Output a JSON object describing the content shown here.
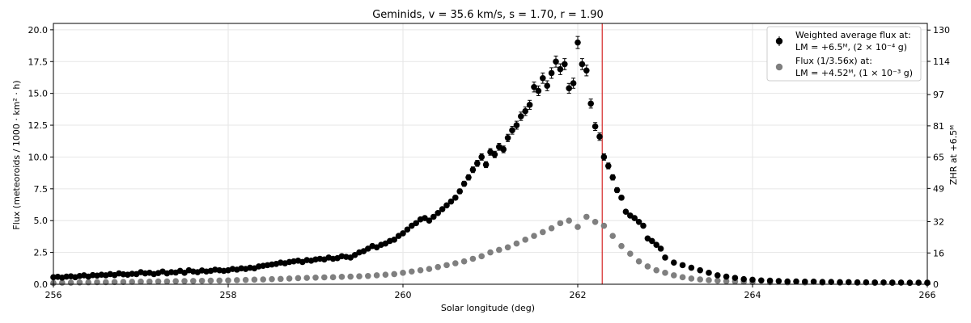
{
  "chart_data": {
    "type": "scatter",
    "title": "Geminids, v = 35.6 km/s, s = 1.70, r = 1.90",
    "xlabel": "Solar longitude (deg)",
    "ylabel": "Flux (meteoroids / 1000 · km² · h)",
    "y2label": "ZHR at +6.5ᴹ",
    "xlim": [
      256,
      266
    ],
    "ylim": [
      0,
      20.5
    ],
    "xticks": [
      256,
      258,
      260,
      262,
      264,
      266
    ],
    "xtick_labels": [
      "256",
      "258",
      "260",
      "262",
      "264",
      "266"
    ],
    "yticks": [
      0,
      2.5,
      5,
      7.5,
      10,
      12.5,
      15,
      17.5,
      20
    ],
    "ytick_labels": [
      "0.0",
      "2.5",
      "5.0",
      "7.5",
      "10.0",
      "12.5",
      "15.0",
      "17.5",
      "20.0"
    ],
    "y2ticks": [
      0,
      16,
      32,
      49,
      65,
      81,
      97,
      114,
      130
    ],
    "y2tick_labels": [
      "0",
      "16",
      "32",
      "49",
      "65",
      "81",
      "97",
      "114",
      "130"
    ],
    "y2lim": [
      0,
      133.4
    ],
    "grid": true,
    "legend_position": "top-right",
    "vline": {
      "x": 262.28,
      "color": "#d62728"
    },
    "series": [
      {
        "name_line1": "Weighted average flux at:",
        "name_line2": "LM = +6.5ᴹ, (2 × 10⁻⁴ g)",
        "color": "#000000",
        "error_bars": true,
        "x": [
          256.0,
          256.05,
          256.1,
          256.15,
          256.2,
          256.25,
          256.3,
          256.35,
          256.4,
          256.45,
          256.5,
          256.55,
          256.6,
          256.65,
          256.7,
          256.75,
          256.8,
          256.85,
          256.9,
          256.95,
          257.0,
          257.05,
          257.1,
          257.15,
          257.2,
          257.25,
          257.3,
          257.35,
          257.4,
          257.45,
          257.5,
          257.55,
          257.6,
          257.65,
          257.7,
          257.75,
          257.8,
          257.85,
          257.9,
          257.95,
          258.0,
          258.05,
          258.1,
          258.15,
          258.2,
          258.25,
          258.3,
          258.35,
          258.4,
          258.45,
          258.5,
          258.55,
          258.6,
          258.65,
          258.7,
          258.75,
          258.8,
          258.85,
          258.9,
          258.95,
          259.0,
          259.05,
          259.1,
          259.15,
          259.2,
          259.25,
          259.3,
          259.35,
          259.4,
          259.45,
          259.5,
          259.55,
          259.6,
          259.65,
          259.7,
          259.75,
          259.8,
          259.85,
          259.9,
          259.95,
          260.0,
          260.05,
          260.1,
          260.15,
          260.2,
          260.25,
          260.3,
          260.35,
          260.4,
          260.45,
          260.5,
          260.55,
          260.6,
          260.65,
          260.7,
          260.75,
          260.8,
          260.85,
          260.9,
          260.95,
          261.0,
          261.05,
          261.1,
          261.15,
          261.2,
          261.25,
          261.3,
          261.35,
          261.4,
          261.45,
          261.5,
          261.55,
          261.6,
          261.65,
          261.7,
          261.75,
          261.8,
          261.85,
          261.9,
          261.95,
          262.0,
          262.05,
          262.1,
          262.15,
          262.2,
          262.25,
          262.3,
          262.35,
          262.4,
          262.45,
          262.5,
          262.55,
          262.6,
          262.65,
          262.7,
          262.75,
          262.8,
          262.85,
          262.9,
          262.95,
          263.0,
          263.1,
          263.2,
          263.3,
          263.4,
          263.5,
          263.6,
          263.7,
          263.8,
          263.9,
          264.0,
          264.1,
          264.2,
          264.3,
          264.4,
          264.5,
          264.6,
          264.7,
          264.8,
          264.9,
          265.0,
          265.1,
          265.2,
          265.3,
          265.4,
          265.5,
          265.6,
          265.7,
          265.8,
          265.9,
          266.0
        ],
        "y": [
          0.55,
          0.58,
          0.52,
          0.6,
          0.62,
          0.55,
          0.65,
          0.7,
          0.6,
          0.72,
          0.68,
          0.75,
          0.7,
          0.8,
          0.72,
          0.85,
          0.78,
          0.75,
          0.82,
          0.8,
          0.95,
          0.85,
          0.9,
          0.8,
          0.88,
          1.0,
          0.85,
          0.95,
          0.92,
          1.05,
          0.9,
          1.1,
          1.0,
          0.95,
          1.08,
          1.0,
          1.05,
          1.15,
          1.1,
          1.05,
          1.1,
          1.2,
          1.15,
          1.25,
          1.2,
          1.3,
          1.25,
          1.4,
          1.45,
          1.5,
          1.55,
          1.6,
          1.7,
          1.65,
          1.75,
          1.8,
          1.85,
          1.75,
          1.9,
          1.85,
          1.95,
          2.0,
          1.95,
          2.1,
          2.0,
          2.05,
          2.2,
          2.15,
          2.1,
          2.3,
          2.5,
          2.6,
          2.8,
          3.0,
          2.9,
          3.1,
          3.2,
          3.4,
          3.5,
          3.8,
          4.0,
          4.3,
          4.6,
          4.8,
          5.1,
          5.2,
          5.0,
          5.3,
          5.6,
          5.9,
          6.2,
          6.5,
          6.8,
          7.3,
          7.9,
          8.4,
          9.0,
          9.5,
          10.0,
          9.4,
          10.4,
          10.2,
          10.8,
          10.6,
          11.5,
          12.1,
          12.5,
          13.2,
          13.6,
          14.1,
          15.5,
          15.2,
          16.2,
          15.6,
          16.6,
          17.5,
          16.9,
          17.3,
          15.4,
          15.8,
          19.0,
          17.3,
          16.8,
          14.2,
          12.4,
          11.6,
          10.0,
          9.3,
          8.4,
          7.4,
          6.8,
          5.7,
          5.4,
          5.2,
          4.9,
          4.6,
          3.6,
          3.4,
          3.1,
          2.8,
          2.1,
          1.7,
          1.5,
          1.3,
          1.1,
          0.9,
          0.7,
          0.6,
          0.5,
          0.4,
          0.35,
          0.3,
          0.28,
          0.25,
          0.22,
          0.22,
          0.2,
          0.2,
          0.18,
          0.18,
          0.16,
          0.16,
          0.15,
          0.15,
          0.14,
          0.14,
          0.13,
          0.13,
          0.12,
          0.12,
          0.12
        ]
      },
      {
        "name_line1": "Flux (1/3.56x) at:",
        "name_line2": "LM = +4.52ᴹ, (1 × 10⁻³ g)",
        "color": "#7f7f7f",
        "error_bars": false,
        "x": [
          256.0,
          256.1,
          256.2,
          256.3,
          256.4,
          256.5,
          256.6,
          256.7,
          256.8,
          256.9,
          257.0,
          257.1,
          257.2,
          257.3,
          257.4,
          257.5,
          257.6,
          257.7,
          257.8,
          257.9,
          258.0,
          258.1,
          258.2,
          258.3,
          258.4,
          258.5,
          258.6,
          258.7,
          258.8,
          258.9,
          259.0,
          259.1,
          259.2,
          259.3,
          259.4,
          259.5,
          259.6,
          259.7,
          259.8,
          259.9,
          260.0,
          260.1,
          260.2,
          260.3,
          260.4,
          260.5,
          260.6,
          260.7,
          260.8,
          260.9,
          261.0,
          261.1,
          261.2,
          261.3,
          261.4,
          261.5,
          261.6,
          261.7,
          261.8,
          261.9,
          262.0,
          262.1,
          262.2,
          262.3,
          262.4,
          262.5,
          262.6,
          262.7,
          262.8,
          262.9,
          263.0,
          263.1,
          263.2,
          263.3,
          263.4,
          263.5,
          263.6,
          263.7,
          263.8,
          263.9,
          264.0,
          264.2,
          264.4,
          264.6,
          264.8,
          265.0,
          265.2,
          265.4,
          265.6,
          265.8,
          266.0
        ],
        "y": [
          0.1,
          0.12,
          0.12,
          0.14,
          0.15,
          0.16,
          0.16,
          0.17,
          0.18,
          0.19,
          0.2,
          0.2,
          0.22,
          0.22,
          0.24,
          0.25,
          0.26,
          0.27,
          0.28,
          0.29,
          0.3,
          0.32,
          0.34,
          0.36,
          0.38,
          0.4,
          0.42,
          0.45,
          0.48,
          0.5,
          0.52,
          0.54,
          0.55,
          0.58,
          0.6,
          0.62,
          0.65,
          0.7,
          0.75,
          0.8,
          0.9,
          1.0,
          1.1,
          1.2,
          1.35,
          1.5,
          1.65,
          1.8,
          2.0,
          2.2,
          2.5,
          2.7,
          2.9,
          3.2,
          3.5,
          3.8,
          4.1,
          4.4,
          4.8,
          5.0,
          4.5,
          5.3,
          4.9,
          4.6,
          3.8,
          3.0,
          2.4,
          1.8,
          1.4,
          1.1,
          0.9,
          0.7,
          0.55,
          0.45,
          0.38,
          0.32,
          0.28,
          0.24,
          0.22,
          0.2,
          0.18,
          0.16,
          0.15,
          0.14,
          0.13,
          0.12,
          0.12,
          0.11,
          0.11,
          0.1,
          0.1
        ]
      }
    ]
  }
}
